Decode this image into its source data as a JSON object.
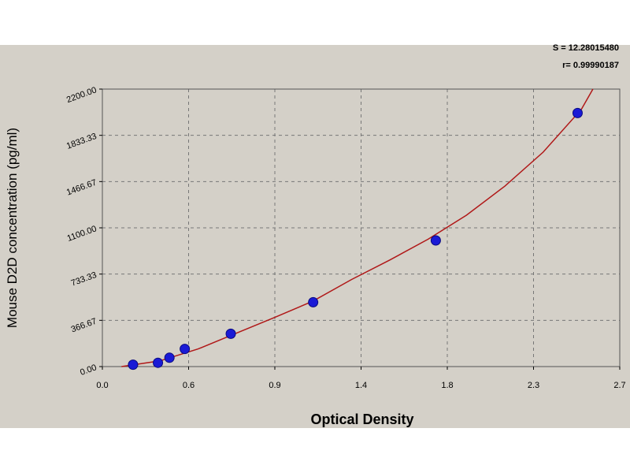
{
  "stats": {
    "s": "S = 12.28015480",
    "r": "r= 0.99990187"
  },
  "chart_data": {
    "type": "scatter",
    "title": "",
    "xlabel": "Optical Density",
    "ylabel": "Mouse D2D concentration (pg/ml)",
    "xlim": [
      0.0,
      2.7
    ],
    "ylim": [
      0.0,
      2200.0
    ],
    "x_ticks": [
      "0.0",
      "0.6",
      "0.9",
      "1.4",
      "1.8",
      "2.3",
      "2.7"
    ],
    "y_ticks": [
      "0.00",
      "366.67",
      "733.33",
      "1100.00",
      "1466.67",
      "1833.33",
      "2200.00"
    ],
    "grid": true,
    "series": [
      {
        "kind": "points",
        "color": "#1a1ad6",
        "x": [
          0.16,
          0.29,
          0.35,
          0.43,
          0.67,
          1.1,
          1.74,
          2.48
        ],
        "y": [
          15,
          30,
          70,
          140,
          260,
          510,
          1000,
          2010
        ]
      },
      {
        "kind": "fit-curve",
        "color": "#b01818",
        "x": [
          0.1,
          0.3,
          0.5,
          0.7,
          0.9,
          1.1,
          1.3,
          1.5,
          1.7,
          1.9,
          2.1,
          2.3,
          2.5,
          2.56
        ],
        "y": [
          0,
          45,
          140,
          265,
          390,
          520,
          690,
          845,
          1010,
          1200,
          1430,
          1700,
          2040,
          2200
        ]
      }
    ]
  }
}
